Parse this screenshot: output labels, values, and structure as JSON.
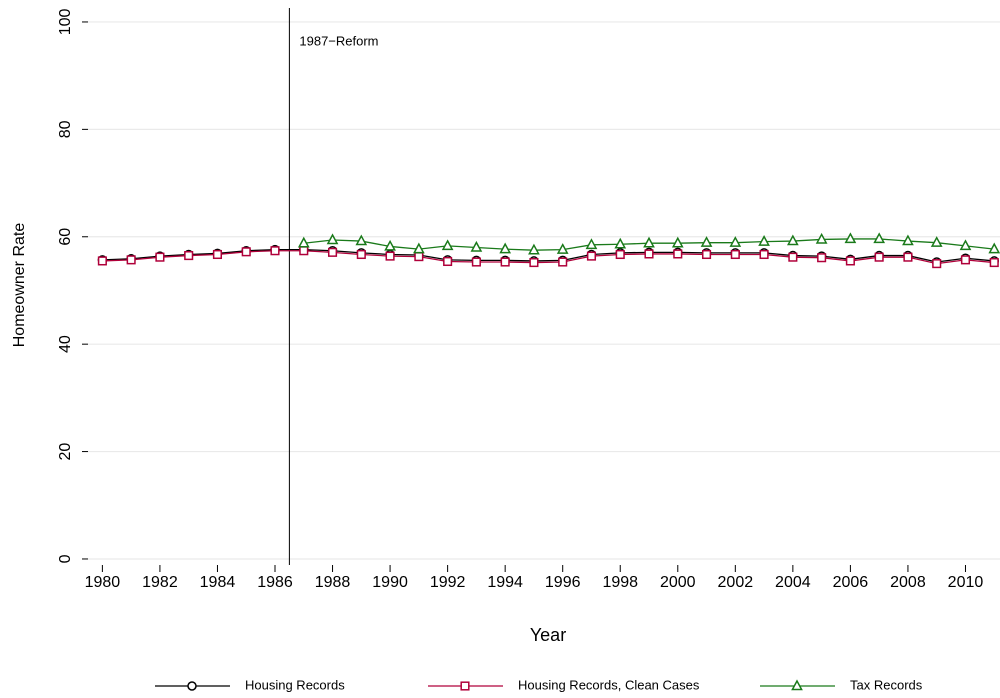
{
  "chart_data": {
    "type": "line",
    "x_label": "Year",
    "y_label": "Homeowner Rate",
    "x": [
      1980,
      1981,
      1982,
      1983,
      1984,
      1985,
      1986,
      1987,
      1988,
      1989,
      1990,
      1991,
      1992,
      1993,
      1994,
      1995,
      1996,
      1997,
      1998,
      1999,
      2000,
      2001,
      2002,
      2003,
      2004,
      2005,
      2006,
      2007,
      2008,
      2009,
      2010,
      2011
    ],
    "series": [
      {
        "name": "Housing Records",
        "color": "#000000",
        "marker": "circle",
        "values": [
          55.7,
          55.9,
          56.4,
          56.7,
          56.9,
          57.4,
          57.6,
          57.6,
          57.4,
          57.0,
          56.7,
          56.6,
          55.7,
          55.6,
          55.6,
          55.5,
          55.6,
          56.7,
          57.0,
          57.1,
          57.1,
          57.0,
          57.0,
          57.0,
          56.5,
          56.4,
          55.8,
          56.5,
          56.5,
          55.3,
          56.0,
          55.5
        ]
      },
      {
        "name": "Housing Records, Clean Cases",
        "color": "#b0003a",
        "marker": "square",
        "values": [
          55.5,
          55.7,
          56.2,
          56.5,
          56.7,
          57.2,
          57.4,
          57.4,
          57.1,
          56.7,
          56.4,
          56.3,
          55.4,
          55.3,
          55.3,
          55.2,
          55.3,
          56.4,
          56.7,
          56.8,
          56.8,
          56.7,
          56.7,
          56.7,
          56.2,
          56.1,
          55.5,
          56.2,
          56.2,
          55.0,
          55.7,
          55.2
        ]
      },
      {
        "name": "Tax Records",
        "color": "#1a7a1a",
        "marker": "triangle",
        "values": [
          null,
          null,
          null,
          null,
          null,
          null,
          null,
          58.8,
          59.4,
          59.2,
          58.2,
          57.7,
          58.3,
          58.0,
          57.7,
          57.5,
          57.6,
          58.5,
          58.6,
          58.8,
          58.8,
          58.9,
          58.9,
          59.1,
          59.2,
          59.5,
          59.6,
          59.6,
          59.2,
          58.9,
          58.3,
          57.7
        ]
      }
    ],
    "reference_line": {
      "x": 1986.5,
      "label": "1987−Reform"
    },
    "xlim": [
      1979.5,
      2011.2
    ],
    "ylim": [
      -0.75,
      102.6
    ],
    "xticks": [
      1980,
      1982,
      1984,
      1986,
      1988,
      1990,
      1992,
      1994,
      1996,
      1998,
      2000,
      2002,
      2004,
      2006,
      2008,
      2010
    ],
    "yticks": [
      0,
      20,
      40,
      60,
      80,
      100
    ],
    "grid": true
  }
}
